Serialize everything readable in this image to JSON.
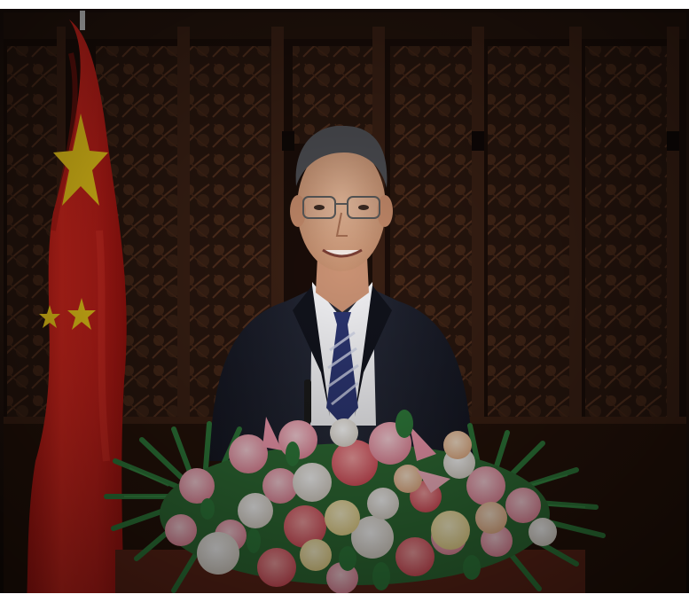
{
  "scene": {
    "palette": {
      "background_wood": "#2a1810",
      "wood_highlight": "#5a3522",
      "flag_red": "#d1221a",
      "flag_star": "#f7d21a",
      "suit": "#1f2230",
      "shirt": "#f1f1f4",
      "tie_navy": "#2b3570",
      "leaf_green": "#2e7a3a",
      "flower_pink": "#f3a6b5",
      "flower_white": "#f7f4ef",
      "flower_peach": "#f6c7a4",
      "flower_coral": "#ee6f78",
      "skin": "#d9a98a",
      "hair": "#4a4b50"
    }
  }
}
